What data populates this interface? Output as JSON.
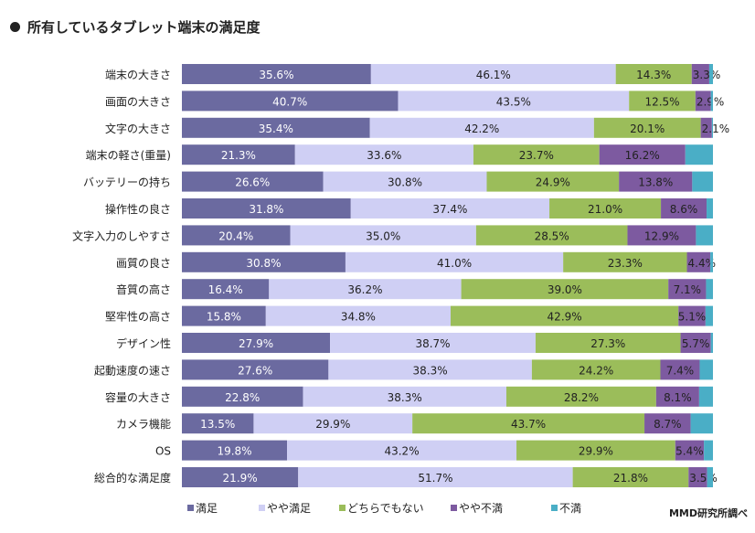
{
  "title": "所有しているタブレット端末の満足度",
  "source": "MMD研究所調べ",
  "chart_data": {
    "type": "bar",
    "orientation": "horizontal",
    "stacked": true,
    "unit": "%",
    "categories": [
      "端末の大きさ",
      "画面の大きさ",
      "文字の大きさ",
      "端末の軽さ(重量)",
      "バッテリーの持ち",
      "操作性の良さ",
      "文字入力のしやすさ",
      "画質の良さ",
      "音質の高さ",
      "堅牢性の高さ",
      "デザイン性",
      "起動速度の速さ",
      "容量の大きさ",
      "カメラ機能",
      "OS",
      "総合的な満足度"
    ],
    "series": [
      {
        "name": "満足",
        "color": "#6b6aa0",
        "values": [
          35.6,
          40.7,
          35.4,
          21.3,
          26.6,
          31.8,
          20.4,
          30.8,
          16.4,
          15.8,
          27.9,
          27.6,
          22.8,
          13.5,
          19.8,
          21.9
        ]
      },
      {
        "name": "やや満足",
        "color": "#cfcff4",
        "values": [
          46.1,
          43.5,
          42.2,
          33.6,
          30.8,
          37.4,
          35.0,
          41.0,
          36.2,
          34.8,
          38.7,
          38.3,
          38.3,
          29.9,
          43.2,
          51.7
        ]
      },
      {
        "name": "どちらでもない",
        "color": "#9bbd5a",
        "values": [
          14.3,
          12.5,
          20.1,
          23.7,
          24.9,
          21.0,
          28.5,
          23.3,
          39.0,
          42.9,
          27.3,
          24.2,
          28.2,
          43.7,
          29.9,
          21.8
        ]
      },
      {
        "name": "やや不満",
        "color": "#7d5aa0",
        "values": [
          3.3,
          2.9,
          2.1,
          16.2,
          13.8,
          8.6,
          12.9,
          4.4,
          7.1,
          5.1,
          5.7,
          7.4,
          8.1,
          8.7,
          5.4,
          3.5
        ]
      },
      {
        "name": "不満",
        "color": "#4aaec6",
        "values": [
          0.7,
          0.4,
          0.2,
          5.2,
          3.9,
          1.2,
          3.2,
          0.5,
          1.3,
          1.4,
          0.4,
          2.5,
          2.6,
          4.2,
          1.7,
          1.1
        ]
      }
    ],
    "xlim": [
      0,
      100
    ],
    "legend_position": "bottom"
  }
}
